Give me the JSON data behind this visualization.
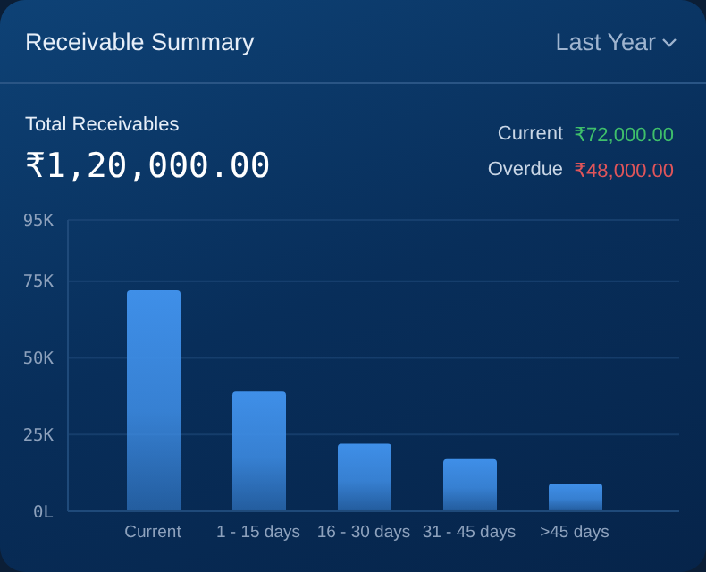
{
  "chart_data": {
    "type": "bar",
    "title": "Receivable Summary",
    "annotations": [
      "Last Year",
      "Total Receivables",
      "₹1,20,000.00",
      "Current",
      "₹72,000.00",
      "Overdue",
      "₹48,000.00"
    ],
    "categories": [
      "Current",
      "1 - 15 days",
      "16 - 30 days",
      "31 - 45 days",
      ">45 days"
    ],
    "values": [
      72,
      39,
      22,
      17,
      9
    ],
    "color": "#3f8fe8",
    "ylim": [
      0,
      95
    ],
    "yticks": [
      {
        "value": 0,
        "label": "0L"
      },
      {
        "value": 25,
        "label": "25K"
      },
      {
        "value": 50,
        "label": "50K"
      },
      {
        "value": 75,
        "label": "75K"
      },
      {
        "value": 95,
        "label": "95K"
      }
    ],
    "grid": "y",
    "legend": false
  }
}
